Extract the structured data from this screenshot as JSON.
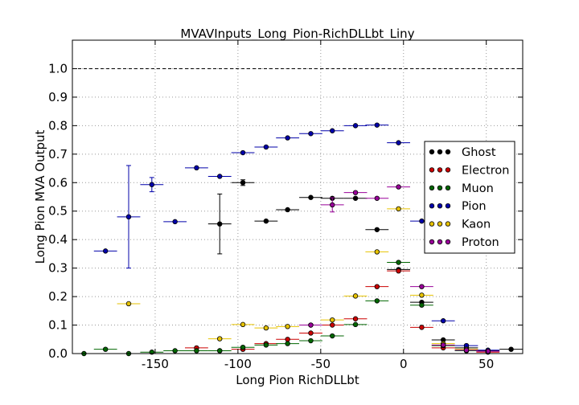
{
  "chart_data": {
    "type": "scatter",
    "title": "MVAVInputs_Long_Pion-RichDLLbt_Liny",
    "xlabel": "Long Pion RichDLLbt",
    "ylabel": "Long Pion MVA Output",
    "xlim": [
      -200,
      72
    ],
    "ylim": [
      0,
      1.1
    ],
    "x_ticks": [
      "-150",
      "-100",
      "-50",
      "0",
      "50"
    ],
    "x_tick_values": [
      -150,
      -100,
      -50,
      0,
      50
    ],
    "y_ticks": [
      "0.0",
      "0.1",
      "0.2",
      "0.3",
      "0.4",
      "0.5",
      "0.6",
      "0.7",
      "0.8",
      "0.9",
      "1.0"
    ],
    "y_tick_values": [
      0,
      0.1,
      0.2,
      0.3,
      0.4,
      0.5,
      0.6,
      0.7,
      0.8,
      0.9,
      1.0
    ],
    "reference_line": 1.0,
    "grid": true,
    "legend_position": "right",
    "x_error": 7,
    "series": [
      {
        "name": "Ghost",
        "color": "#000000",
        "points": [
          {
            "x": -97,
            "y": 0.6,
            "err": 0.01
          },
          {
            "x": -111,
            "y": 0.455,
            "err": 0.105
          },
          {
            "x": -83,
            "y": 0.465
          },
          {
            "x": -70,
            "y": 0.505
          },
          {
            "x": -56,
            "y": 0.548
          },
          {
            "x": -43,
            "y": 0.545
          },
          {
            "x": -29,
            "y": 0.545
          },
          {
            "x": -16,
            "y": 0.435
          },
          {
            "x": -3,
            "y": 0.295
          },
          {
            "x": 11,
            "y": 0.18
          },
          {
            "x": 24,
            "y": 0.048
          },
          {
            "x": 38,
            "y": 0.02
          },
          {
            "x": 51,
            "y": 0.01
          },
          {
            "x": 65,
            "y": 0.015
          }
        ]
      },
      {
        "name": "Electron",
        "color": "#cc0000",
        "points": [
          {
            "x": -125,
            "y": 0.02
          },
          {
            "x": -111,
            "y": 0.01
          },
          {
            "x": -97,
            "y": 0.015
          },
          {
            "x": -83,
            "y": 0.035
          },
          {
            "x": -70,
            "y": 0.05
          },
          {
            "x": -56,
            "y": 0.072
          },
          {
            "x": -43,
            "y": 0.1
          },
          {
            "x": -29,
            "y": 0.122
          },
          {
            "x": -16,
            "y": 0.235
          },
          {
            "x": -3,
            "y": 0.29
          },
          {
            "x": 11,
            "y": 0.092
          },
          {
            "x": 24,
            "y": 0.02
          },
          {
            "x": 38,
            "y": 0.01
          },
          {
            "x": 51,
            "y": 0.005
          }
        ]
      },
      {
        "name": "Muon",
        "color": "#006600",
        "points": [
          {
            "x": -193,
            "y": 0.0
          },
          {
            "x": -180,
            "y": 0.015
          },
          {
            "x": -166,
            "y": 0.0
          },
          {
            "x": -152,
            "y": 0.005
          },
          {
            "x": -138,
            "y": 0.01
          },
          {
            "x": -125,
            "y": 0.01
          },
          {
            "x": -111,
            "y": 0.01
          },
          {
            "x": -97,
            "y": 0.022
          },
          {
            "x": -83,
            "y": 0.03
          },
          {
            "x": -70,
            "y": 0.035
          },
          {
            "x": -56,
            "y": 0.045
          },
          {
            "x": -43,
            "y": 0.062
          },
          {
            "x": -29,
            "y": 0.102
          },
          {
            "x": -16,
            "y": 0.185
          },
          {
            "x": -3,
            "y": 0.32
          },
          {
            "x": 11,
            "y": 0.17
          },
          {
            "x": 24,
            "y": 0.028
          },
          {
            "x": 38,
            "y": 0.01
          }
        ]
      },
      {
        "name": "Pion",
        "color": "#0000aa",
        "points": [
          {
            "x": -180,
            "y": 0.36
          },
          {
            "x": -166,
            "y": 0.48,
            "err": 0.18
          },
          {
            "x": -152,
            "y": 0.593,
            "err": 0.025
          },
          {
            "x": -138,
            "y": 0.463
          },
          {
            "x": -125,
            "y": 0.652
          },
          {
            "x": -111,
            "y": 0.622
          },
          {
            "x": -97,
            "y": 0.705
          },
          {
            "x": -83,
            "y": 0.725
          },
          {
            "x": -70,
            "y": 0.757
          },
          {
            "x": -56,
            "y": 0.772
          },
          {
            "x": -43,
            "y": 0.782
          },
          {
            "x": -29,
            "y": 0.8
          },
          {
            "x": -16,
            "y": 0.802
          },
          {
            "x": -3,
            "y": 0.74
          },
          {
            "x": 11,
            "y": 0.465
          },
          {
            "x": 24,
            "y": 0.115
          },
          {
            "x": 38,
            "y": 0.028
          },
          {
            "x": 51,
            "y": 0.012
          }
        ]
      },
      {
        "name": "Kaon",
        "color": "#e6c200",
        "points": [
          {
            "x": -166,
            "y": 0.175
          },
          {
            "x": -111,
            "y": 0.052
          },
          {
            "x": -97,
            "y": 0.102
          },
          {
            "x": -83,
            "y": 0.09
          },
          {
            "x": -70,
            "y": 0.095
          },
          {
            "x": -56,
            "y": 0.1
          },
          {
            "x": -43,
            "y": 0.118
          },
          {
            "x": -29,
            "y": 0.202
          },
          {
            "x": -16,
            "y": 0.357
          },
          {
            "x": -3,
            "y": 0.508
          },
          {
            "x": 11,
            "y": 0.205
          },
          {
            "x": 24,
            "y": 0.035
          },
          {
            "x": 38,
            "y": 0.015
          }
        ]
      },
      {
        "name": "Proton",
        "color": "#990099",
        "points": [
          {
            "x": -56,
            "y": 0.1
          },
          {
            "x": -43,
            "y": 0.522,
            "err": 0.025
          },
          {
            "x": -29,
            "y": 0.565
          },
          {
            "x": -16,
            "y": 0.545
          },
          {
            "x": -3,
            "y": 0.585
          },
          {
            "x": 11,
            "y": 0.235
          },
          {
            "x": 24,
            "y": 0.03
          },
          {
            "x": 38,
            "y": 0.012
          },
          {
            "x": 51,
            "y": 0.008
          }
        ]
      }
    ]
  }
}
